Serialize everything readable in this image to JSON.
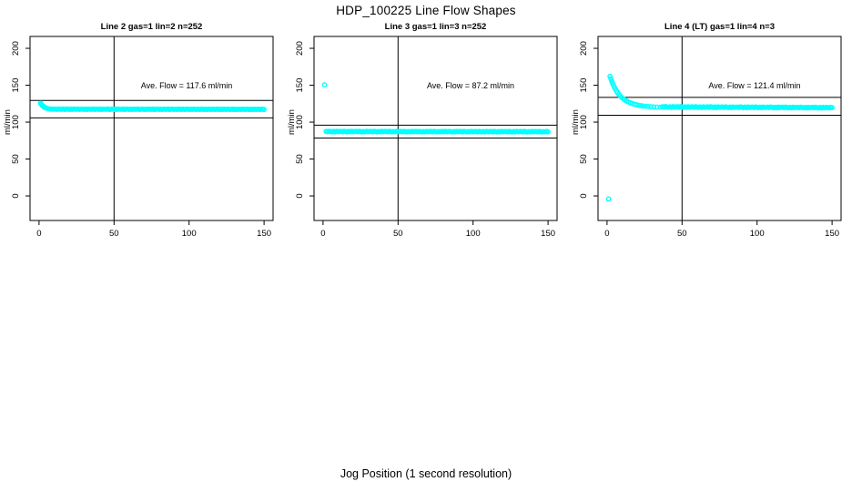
{
  "title": "HDP_100225  Line Flow Shapes",
  "xlabel": "Jog Position (1 second resolution)",
  "colors": {
    "points": "#00FFFF",
    "axis": "#000000"
  },
  "chart_data": [
    {
      "type": "scatter",
      "title": "Line 2 gas=1 lin=2 n=252",
      "ylabel": "ml/min",
      "annotation": "Ave. Flow =  117.6  ml/min",
      "ave_flow_ml_min": 117.6,
      "n": 252,
      "vline_x": 50,
      "ref_lines": [
        129.4,
        105.8
      ],
      "xticks": [
        0,
        50,
        100,
        150
      ],
      "yticks": [
        0,
        50,
        100,
        150,
        200
      ],
      "xlim": [
        -6,
        156
      ],
      "ylim": [
        -33.3,
        216.1
      ],
      "points": [
        [
          1,
          125.6
        ],
        [
          1.5,
          124.2
        ],
        [
          2,
          123.0
        ],
        [
          2.5,
          122.0
        ],
        [
          3,
          121.1
        ],
        [
          3.5,
          120.4
        ],
        [
          4,
          119.8
        ],
        [
          4.5,
          119.3
        ],
        [
          5,
          118.9
        ],
        [
          6,
          118.3
        ],
        [
          7,
          117.9
        ],
        [
          8,
          117.7
        ],
        [
          9,
          117.6
        ],
        [
          10,
          117.5
        ],
        {
          "x0": 11,
          "x1": 150,
          "dx": 1,
          "y": 117.5,
          "y1": 117.3,
          "jitter": [
            0.1,
            -0.2,
            0.2,
            0,
            -0.1,
            0.3,
            -0.3,
            0.1,
            0.2,
            -0.2
          ]
        }
      ]
    },
    {
      "type": "scatter",
      "title": "Line 3 gas=1 lin=3 n=252",
      "ylabel": "ml/min",
      "annotation": "Ave. Flow =  87.2  ml/min",
      "ave_flow_ml_min": 87.2,
      "n": 252,
      "vline_x": 50,
      "ref_lines": [
        95.9,
        78.5
      ],
      "xticks": [
        0,
        50,
        100,
        150
      ],
      "yticks": [
        0,
        50,
        100,
        150,
        200
      ],
      "xlim": [
        -6,
        156
      ],
      "ylim": [
        -33.3,
        216.1
      ],
      "points": [
        [
          1,
          150.5
        ],
        {
          "x0": 2,
          "x1": 150,
          "dx": 1,
          "y": 87.2,
          "y1": 87.0,
          "jitter": [
            0.2,
            -0.2,
            0.3,
            0,
            -0.3,
            0.1,
            -0.2,
            0.3,
            -0.1,
            0.2
          ]
        }
      ]
    },
    {
      "type": "scatter",
      "title": "Line 4 (LT) gas=1 lin=4 n=3",
      "ylabel": "ml/min",
      "annotation": "Ave. Flow =  121.4  ml/min",
      "ave_flow_ml_min": 121.4,
      "n": 3,
      "vline_x": 50,
      "ref_lines": [
        133.5,
        109.3
      ],
      "xticks": [
        0,
        50,
        100,
        150
      ],
      "yticks": [
        0,
        50,
        100,
        150,
        200
      ],
      "xlim": [
        -6,
        156
      ],
      "ylim": [
        -33.3,
        216.1
      ],
      "points": [
        [
          1,
          -4
        ],
        [
          2,
          162.0
        ],
        [
          2.6,
          158.5
        ],
        [
          3.2,
          155.2
        ],
        [
          3.8,
          152.2
        ],
        [
          4.4,
          149.4
        ],
        [
          5,
          146.9
        ],
        [
          5.7,
          144.3
        ],
        [
          6.4,
          141.9
        ],
        [
          7.1,
          139.8
        ],
        [
          7.9,
          137.6
        ],
        [
          8.7,
          135.7
        ],
        [
          9.5,
          134.0
        ],
        [
          10.4,
          132.3
        ],
        [
          11.3,
          130.9
        ],
        [
          12.3,
          129.5
        ],
        [
          13.3,
          128.3
        ],
        [
          14.4,
          127.2
        ],
        [
          15.5,
          126.2
        ],
        [
          16.7,
          125.3
        ],
        [
          18,
          124.4
        ],
        [
          19.3,
          123.7
        ],
        [
          20.7,
          123.0
        ],
        [
          22.2,
          122.4
        ],
        [
          23.8,
          121.9
        ],
        [
          25.5,
          121.5
        ],
        [
          27.3,
          121.1
        ],
        [
          29.2,
          120.8
        ],
        [
          31.2,
          120.5
        ],
        [
          33.3,
          120.3
        ],
        [
          35.5,
          120.1
        ],
        {
          "x0": 37,
          "x1": 150,
          "dx": 1,
          "y": 120.6,
          "y1": 119.6,
          "jitter": [
            0.3,
            -0.3,
            0.5,
            0,
            -0.4,
            0.2,
            -0.5,
            0.4,
            -0.2,
            0.1
          ]
        }
      ]
    }
  ]
}
